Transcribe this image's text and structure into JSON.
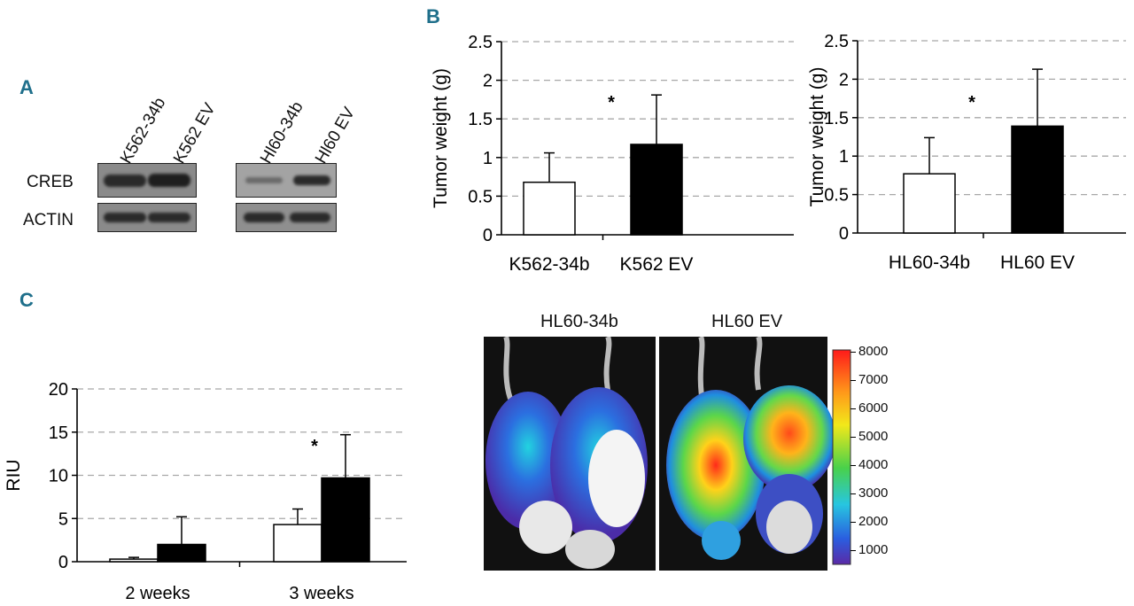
{
  "panels": {
    "a": "A",
    "b": "B",
    "c": "C"
  },
  "blot": {
    "lane_labels": [
      "K562-34b",
      "K562 EV",
      "Hl60-34b",
      "Hl60 EV"
    ],
    "row_labels": [
      "CREB",
      "ACTIN"
    ]
  },
  "imaging": {
    "group_labels": [
      "HL60-34b",
      "HL60 EV"
    ],
    "colorbar_ticks": [
      "8000",
      "7000",
      "6000",
      "5000",
      "4000",
      "3000",
      "2000",
      "1000"
    ]
  },
  "colors": {
    "bar_fill_a": "#ffffff",
    "bar_fill_b": "#000000",
    "grid": "#a8a8a8",
    "accent": "#1f6f8b"
  },
  "chart_data": [
    {
      "id": "b-left",
      "type": "bar",
      "categories": [
        "K562-34b",
        "K562 EV"
      ],
      "values": [
        0.68,
        1.17
      ],
      "errors": [
        0.38,
        0.64
      ],
      "ylabel": "Tumor weight (g)",
      "ylim": [
        0,
        2.5
      ],
      "yticks": [
        "0",
        "0.5",
        "1",
        "1.5",
        "2",
        "2.5"
      ],
      "annotation": "*",
      "grid": true
    },
    {
      "id": "b-right",
      "type": "bar",
      "categories": [
        "HL60-34b",
        "HL60 EV"
      ],
      "values": [
        0.77,
        1.39
      ],
      "errors": [
        0.47,
        0.74
      ],
      "ylabel": "Tumor weight (g)",
      "ylim": [
        0,
        2.5
      ],
      "yticks": [
        "0",
        "0.5",
        "1",
        "1.5",
        "2",
        "2.5"
      ],
      "annotation": "*",
      "grid": true
    },
    {
      "id": "c-riu",
      "type": "bar",
      "categories": [
        "2 weeks",
        "3 weeks"
      ],
      "series": [
        {
          "name": "HL60-34b",
          "values": [
            0.3,
            4.3
          ],
          "errors": [
            0.2,
            1.8
          ]
        },
        {
          "name": "HL60 EV",
          "values": [
            2.0,
            9.7
          ],
          "errors": [
            3.2,
            5.0
          ]
        }
      ],
      "ylabel": "RIU",
      "ylim": [
        0,
        20
      ],
      "yticks": [
        "0",
        "5",
        "10",
        "15",
        "20"
      ],
      "annotation": "*",
      "grid": true
    }
  ]
}
